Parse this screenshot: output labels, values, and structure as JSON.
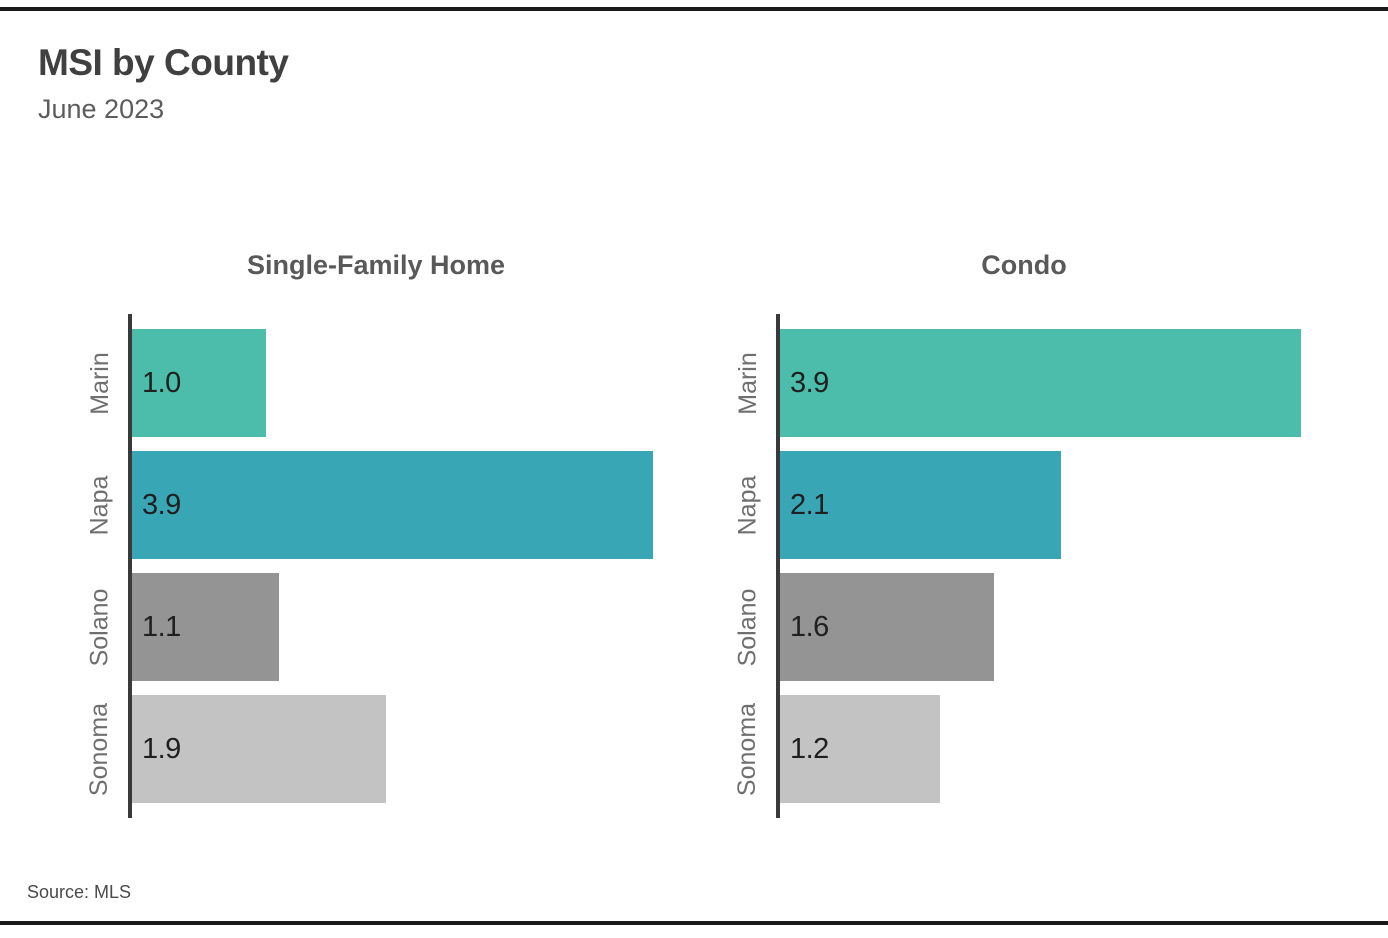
{
  "header": {
    "title": "MSI by County",
    "subtitle": "June 2023"
  },
  "footer": {
    "source": "Source: MLS"
  },
  "colors": {
    "marin_bar": "#4cbcab",
    "napa_bar": "#39a6b5",
    "solano_bar": "#949494",
    "sonoma_bar": "#c3c3c3",
    "axis": "#3a3a3a",
    "rule": "#1a1a1a",
    "value_text": "#1f1f1f",
    "category_text": "#6f6f6f",
    "panel_title_text": "#595959"
  },
  "chart_data": [
    {
      "type": "bar",
      "orientation": "horizontal",
      "title": "Single-Family Home",
      "categories": [
        "Marin",
        "Napa",
        "Solano",
        "Sonoma"
      ],
      "values": [
        1.0,
        3.9,
        1.1,
        1.9
      ],
      "value_labels": [
        "1.0",
        "3.9",
        "1.1",
        "1.9"
      ],
      "bar_colors": [
        "#4cbcab",
        "#39a6b5",
        "#949494",
        "#c3c3c3"
      ],
      "xlim": [
        0,
        4.1
      ],
      "grid": false,
      "value_label_position": "inside-left"
    },
    {
      "type": "bar",
      "orientation": "horizontal",
      "title": "Condo",
      "categories": [
        "Marin",
        "Napa",
        "Solano",
        "Sonoma"
      ],
      "values": [
        3.9,
        2.1,
        1.6,
        1.2
      ],
      "value_labels": [
        "3.9",
        "2.1",
        "1.6",
        "1.2"
      ],
      "bar_colors": [
        "#4cbcab",
        "#39a6b5",
        "#949494",
        "#c3c3c3"
      ],
      "xlim": [
        0,
        4.1
      ],
      "grid": false,
      "value_label_position": "inside-left"
    }
  ]
}
